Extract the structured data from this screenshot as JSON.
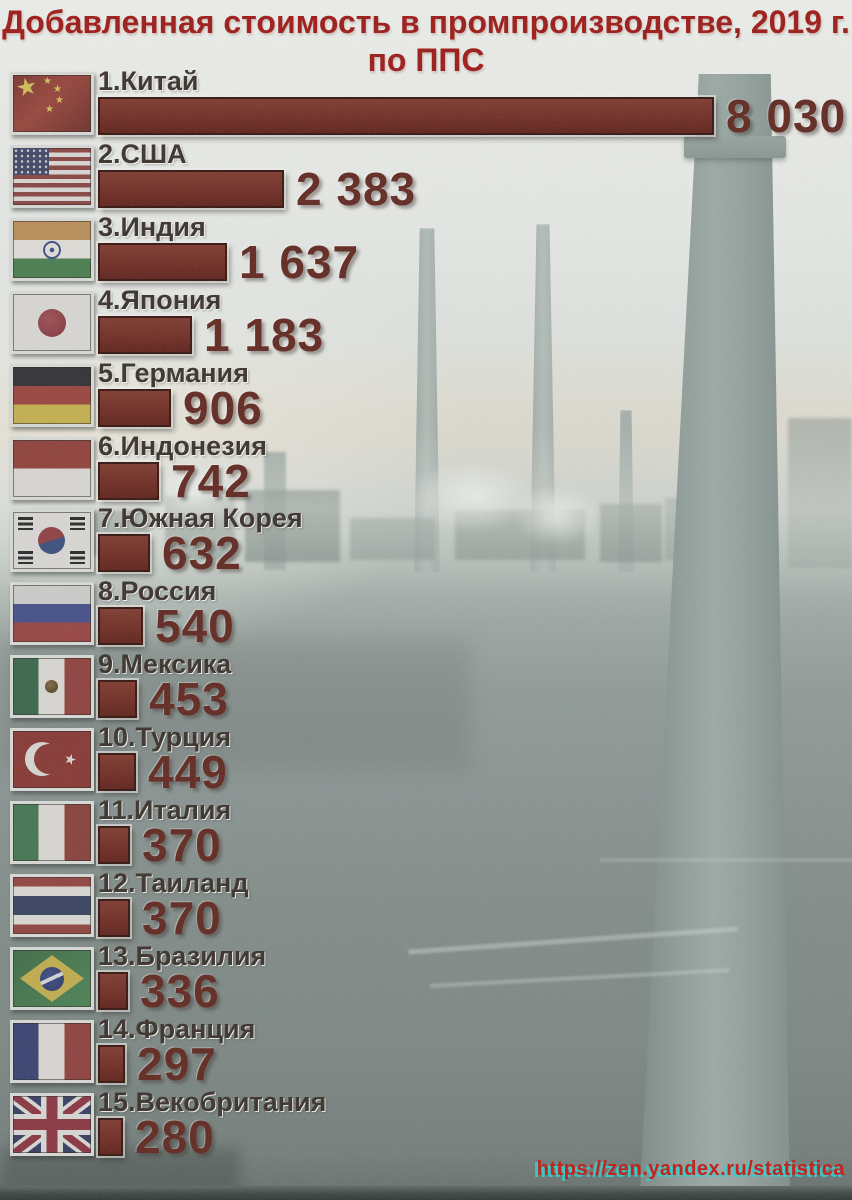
{
  "title": {
    "line1": "Добавленная стоимость в промпроизводстве, 2019 г.",
    "line2": "по ППС"
  },
  "source_url": "https://zen.yandex.ru/statistica",
  "colors": {
    "title_red": "#9c1512",
    "bar_fill": "#6e281f",
    "bar_border": "#33100a",
    "value_text": "#5e241c",
    "label_text": "#362d26",
    "url_red": "#c41510",
    "url_shadow_cyan": "#2fd0cc",
    "paper_top": "#e9ebe7",
    "photo_gray": "#7f8a86"
  },
  "background_note": "grainy photo of industrial plant with smokestacks",
  "chart_data": {
    "type": "bar",
    "orientation": "horizontal",
    "title": "Добавленная стоимость в промпроизводстве, 2019 г. по ППС",
    "legend_position": "none",
    "grid": false,
    "max_value": 8030,
    "xlim": [
      0,
      8030
    ],
    "rows": [
      {
        "rank": 1,
        "country": "Китай",
        "flag": "china",
        "label": "1.Китай",
        "value": 8030,
        "value_text": "8 030"
      },
      {
        "rank": 2,
        "country": "США",
        "flag": "usa",
        "label": "2.США",
        "value": 2383,
        "value_text": "2 383"
      },
      {
        "rank": 3,
        "country": "Индия",
        "flag": "india",
        "label": "3.Индия",
        "value": 1637,
        "value_text": "1 637"
      },
      {
        "rank": 4,
        "country": "Япония",
        "flag": "japan",
        "label": "4.Япония",
        "value": 1183,
        "value_text": "1 183"
      },
      {
        "rank": 5,
        "country": "Германия",
        "flag": "germany",
        "label": "5.Германия",
        "value": 906,
        "value_text": "906"
      },
      {
        "rank": 6,
        "country": "Индонезия",
        "flag": "indonesia",
        "label": "6.Индонезия",
        "value": 742,
        "value_text": "742"
      },
      {
        "rank": 7,
        "country": "Южная Корея",
        "flag": "south-korea",
        "label": "7.Южная Корея",
        "value": 632,
        "value_text": "632"
      },
      {
        "rank": 8,
        "country": "Россия",
        "flag": "russia",
        "label": "8.Россия",
        "value": 540,
        "value_text": "540"
      },
      {
        "rank": 9,
        "country": "Мексика",
        "flag": "mexico",
        "label": "9.Мексика",
        "value": 453,
        "value_text": "453"
      },
      {
        "rank": 10,
        "country": "Турция",
        "flag": "turkey",
        "label": "10.Турция",
        "value": 449,
        "value_text": "449"
      },
      {
        "rank": 11,
        "country": "Италия",
        "flag": "italy",
        "label": "11.Италия",
        "value": 370,
        "value_text": "370"
      },
      {
        "rank": 12,
        "country": "Таиланд",
        "flag": "thailand",
        "label": "12.Таиланд",
        "value": 370,
        "value_text": "370"
      },
      {
        "rank": 13,
        "country": "Бразилия",
        "flag": "brazil",
        "label": "13.Бразилия",
        "value": 336,
        "value_text": "336"
      },
      {
        "rank": 14,
        "country": "Франция",
        "flag": "france",
        "label": "14.Франция",
        "value": 297,
        "value_text": "297"
      },
      {
        "rank": 15,
        "country": "Векобритания",
        "flag": "uk",
        "label": "15.Векобритания",
        "value": 280,
        "value_text": "280"
      }
    ]
  }
}
